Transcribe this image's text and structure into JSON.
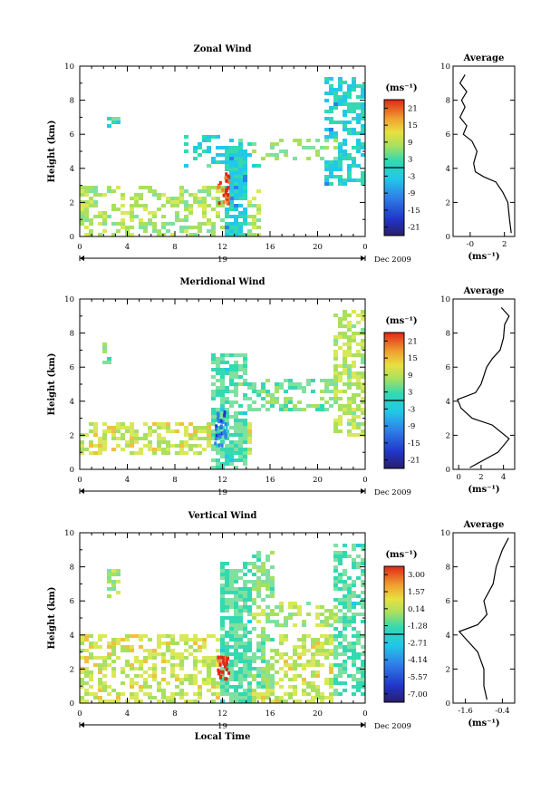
{
  "chart_data": [
    {
      "type": "heatmap",
      "title": "Zonal Wind",
      "ylabel": "Height (km)",
      "ylim": [
        0,
        10
      ],
      "yticks": [
        "0",
        "2",
        "4",
        "6",
        "8",
        "10"
      ],
      "xticks": [
        "0",
        "4",
        "8",
        "12",
        "16",
        "20",
        "0"
      ],
      "date_bar_label": "19",
      "date_label": "Dec 2009",
      "colorbar": {
        "unit": "(ms⁻¹)",
        "ticks": [
          "21",
          "15",
          "9",
          "3",
          "-3",
          "-9",
          "-15",
          "-21"
        ],
        "range": [
          -24,
          24
        ]
      },
      "profile": {
        "title": "Average",
        "xlabel": "(ms⁻¹)",
        "xticks": [
          "-0",
          "2"
        ],
        "xlim": [
          -1,
          2.6
        ],
        "yticks": [
          "0",
          "2",
          "4",
          "6",
          "8",
          "10"
        ],
        "points": [
          [
            2.4,
            0.2
          ],
          [
            2.3,
            1.0
          ],
          [
            2.2,
            2.0
          ],
          [
            1.9,
            2.6
          ],
          [
            1.5,
            3.2
          ],
          [
            0.8,
            3.5
          ],
          [
            0.3,
            3.8
          ],
          [
            0.2,
            4.3
          ],
          [
            0.4,
            5.0
          ],
          [
            0.1,
            5.6
          ],
          [
            -0.4,
            6.0
          ],
          [
            -0.2,
            6.5
          ],
          [
            -0.6,
            7.0
          ],
          [
            -0.3,
            7.6
          ],
          [
            -0.5,
            8.0
          ],
          [
            -0.2,
            8.5
          ],
          [
            -0.6,
            9.0
          ],
          [
            -0.3,
            9.5
          ]
        ]
      }
    },
    {
      "type": "heatmap",
      "title": "Meridional Wind",
      "ylabel": "Height (km)",
      "ylim": [
        0,
        10
      ],
      "yticks": [
        "0",
        "2",
        "4",
        "6",
        "8",
        "10"
      ],
      "xticks": [
        "0",
        "4",
        "8",
        "12",
        "16",
        "20",
        "0"
      ],
      "date_bar_label": "19",
      "date_label": "Dec 2009",
      "colorbar": {
        "unit": "(ms⁻¹)",
        "ticks": [
          "21",
          "15",
          "9",
          "3",
          "-3",
          "-9",
          "-15",
          "-21"
        ],
        "range": [
          -24,
          24
        ]
      },
      "profile": {
        "title": "Average",
        "xlabel": "(ms⁻¹)",
        "xticks": [
          "0",
          "2",
          "4"
        ],
        "xlim": [
          -0.5,
          5
        ],
        "yticks": [
          "0",
          "2",
          "4",
          "6",
          "8",
          "10"
        ],
        "points": [
          [
            1.0,
            0.1
          ],
          [
            3.5,
            1.0
          ],
          [
            4.5,
            1.8
          ],
          [
            3.0,
            2.6
          ],
          [
            1.2,
            3.0
          ],
          [
            0.2,
            3.6
          ],
          [
            -0.1,
            4.1
          ],
          [
            1.5,
            4.5
          ],
          [
            2.0,
            5.0
          ],
          [
            2.5,
            6.0
          ],
          [
            3.0,
            6.5
          ],
          [
            3.7,
            7.0
          ],
          [
            4.0,
            7.7
          ],
          [
            4.1,
            8.5
          ],
          [
            4.5,
            9.0
          ],
          [
            3.8,
            9.5
          ]
        ]
      }
    },
    {
      "type": "heatmap",
      "title": "Vertical Wind",
      "ylabel": "Height (km)",
      "xlabel": "Local Time",
      "ylim": [
        0,
        10
      ],
      "yticks": [
        "0",
        "2",
        "4",
        "6",
        "8",
        "10"
      ],
      "xticks": [
        "0",
        "4",
        "8",
        "12",
        "16",
        "20",
        "0"
      ],
      "date_bar_label": "19",
      "date_label": "Dec 2009",
      "colorbar": {
        "unit": "(ms⁻¹)",
        "ticks": [
          "3.00",
          "1.57",
          "0.14",
          "-1.28",
          "-2.71",
          "-4.14",
          "-5.57",
          "-7.00"
        ],
        "range": [
          -7.7,
          3.7
        ]
      },
      "profile": {
        "title": "Average",
        "xlabel": "(ms⁻¹)",
        "xticks": [
          "-1.6",
          "-0.4"
        ],
        "xlim": [
          -2.0,
          0.0
        ],
        "yticks": [
          "0",
          "2",
          "4",
          "6",
          "8",
          "10"
        ],
        "points": [
          [
            -0.9,
            0.2
          ],
          [
            -1.0,
            1.0
          ],
          [
            -1.0,
            2.0
          ],
          [
            -1.2,
            3.0
          ],
          [
            -1.6,
            3.8
          ],
          [
            -1.8,
            4.2
          ],
          [
            -1.2,
            4.6
          ],
          [
            -0.9,
            5.2
          ],
          [
            -1.0,
            6.0
          ],
          [
            -0.7,
            7.0
          ],
          [
            -0.6,
            8.0
          ],
          [
            -0.4,
            9.0
          ],
          [
            -0.2,
            9.7
          ]
        ]
      }
    }
  ]
}
